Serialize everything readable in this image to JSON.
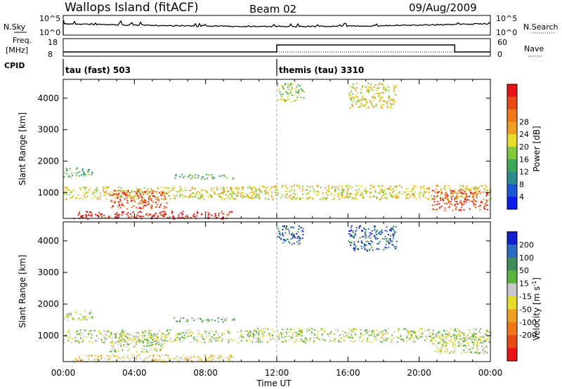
{
  "header": {
    "station": "Wallops Island (fitACF)",
    "beam": "Beam 02",
    "date": "09/Aug/2009"
  },
  "top_panels": {
    "nsky_label": "N.Sky",
    "nsearch_label": "N.Search",
    "count_axis_top": "10^5",
    "count_axis_bottom": "10^0",
    "freq_label_1": "Freq.",
    "freq_label_2": "[MHz]",
    "freq_ticks": [
      "18",
      "8"
    ],
    "nave_ticks": [
      "60",
      "0"
    ],
    "nave_label": "Nave",
    "cpid_label": "CPID",
    "modes": [
      {
        "label": "tau (fast) 503",
        "start_hour": 0
      },
      {
        "label": "themis (tau) 3310",
        "start_hour": 12
      }
    ],
    "nave_steps": [
      {
        "start_hour": 12,
        "end_hour": 22,
        "value": "high"
      }
    ]
  },
  "chart_data": [
    {
      "type": "heatmap",
      "title": "",
      "xlabel": "Time UT",
      "ylabel": "Slant Range [km]",
      "xlim_hours": [
        0,
        24
      ],
      "ylim": [
        180,
        4600
      ],
      "yticks": [
        1000,
        2000,
        3000,
        4000
      ],
      "colorbar": {
        "label": "Power [dB]",
        "ticks": [
          "4",
          "8",
          "12",
          "16",
          "20",
          "24",
          "28"
        ],
        "colors": [
          "#0c1ee6",
          "#1c56d6",
          "#2a8c8c",
          "#3ea85a",
          "#80c83c",
          "#e8dc2a",
          "#f0a020",
          "#f07818",
          "#e84a14",
          "#e61414"
        ]
      },
      "echo_regions": [
        {
          "t0": 0.0,
          "t1": 1.6,
          "r0": 1500,
          "r1": 1800,
          "power_db": 10
        },
        {
          "t0": 0.0,
          "t1": 11.0,
          "r0": 800,
          "r1": 1200,
          "power_db": 14
        },
        {
          "t0": 2.6,
          "t1": 5.8,
          "r0": 500,
          "r1": 1100,
          "power_db": 24
        },
        {
          "t0": 0.5,
          "t1": 9.5,
          "r0": 180,
          "r1": 420,
          "power_db": 26
        },
        {
          "t0": 6.2,
          "t1": 9.6,
          "r0": 1450,
          "r1": 1600,
          "power_db": 10
        },
        {
          "t0": 10.3,
          "t1": 24.0,
          "r0": 800,
          "r1": 1250,
          "power_db": 16
        },
        {
          "t0": 20.7,
          "t1": 23.8,
          "r0": 450,
          "r1": 1100,
          "power_db": 24
        },
        {
          "t0": 12.0,
          "t1": 13.5,
          "r0": 3900,
          "r1": 4500,
          "power_db": 12
        },
        {
          "t0": 16.0,
          "t1": 18.7,
          "r0": 3700,
          "r1": 4500,
          "power_db": 14
        }
      ]
    },
    {
      "type": "heatmap",
      "title": "",
      "xlabel": "Time UT",
      "ylabel": "Slant Range [km]",
      "xlim_hours": [
        0,
        24
      ],
      "ylim": [
        180,
        4600
      ],
      "yticks": [
        1000,
        2000,
        3000,
        4000
      ],
      "xticks": [
        "00:00",
        "04:00",
        "08:00",
        "12:00",
        "16:00",
        "20:00",
        "00:00"
      ],
      "colorbar": {
        "label": "Velocity",
        "unit_parts": [
          "[m s",
          "-1",
          "]"
        ],
        "ticks": [
          "200",
          "100",
          "50",
          "15",
          "-15",
          "-50",
          "-100",
          "-200"
        ],
        "colors": [
          "#1020d0",
          "#2c6cc4",
          "#3c8c5a",
          "#5cb43c",
          "#c8c8c8",
          "#e8dc2a",
          "#f0a020",
          "#f07818",
          "#e84a14",
          "#e61414"
        ]
      },
      "echo_regions": [
        {
          "t0": 0.0,
          "t1": 1.6,
          "r0": 1500,
          "r1": 1800,
          "velocity": 0
        },
        {
          "t0": 0.0,
          "t1": 11.0,
          "r0": 800,
          "r1": 1200,
          "velocity": 0
        },
        {
          "t0": 2.6,
          "t1": 5.8,
          "r0": 500,
          "r1": 1100,
          "velocity": 0
        },
        {
          "t0": 0.5,
          "t1": 9.5,
          "r0": 180,
          "r1": 420,
          "velocity": -30
        },
        {
          "t0": 6.2,
          "t1": 9.6,
          "r0": 1450,
          "r1": 1600,
          "velocity": 30
        },
        {
          "t0": 10.3,
          "t1": 24.0,
          "r0": 800,
          "r1": 1250,
          "velocity": 0
        },
        {
          "t0": 20.7,
          "t1": 23.8,
          "r0": 450,
          "r1": 1100,
          "velocity": 0
        },
        {
          "t0": 12.0,
          "t1": 13.5,
          "r0": 3900,
          "r1": 4500,
          "velocity": 150
        },
        {
          "t0": 16.0,
          "t1": 18.7,
          "r0": 3700,
          "r1": 4500,
          "velocity": 150
        }
      ]
    }
  ]
}
